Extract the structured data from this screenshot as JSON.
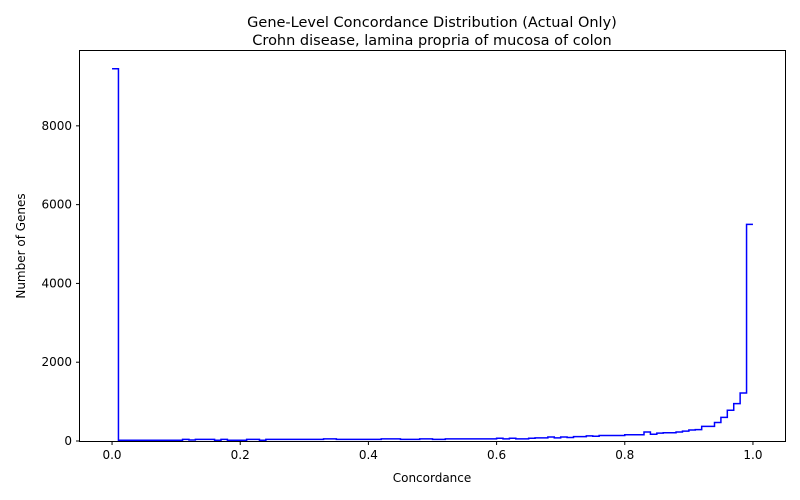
{
  "chart_data": {
    "type": "line",
    "drawstyle": "steps-post",
    "title": "Gene-Level Concordance Distribution (Actual Only)",
    "subtitle": "Crohn disease, lamina propria of mucosa of colon",
    "xlabel": "Concordance",
    "ylabel": "Number of Genes",
    "xlim": [
      -0.05,
      1.05
    ],
    "ylim": [
      0,
      9900
    ],
    "xticks": [
      0.0,
      0.2,
      0.4,
      0.6,
      0.8,
      1.0
    ],
    "xtick_labels": [
      "0.0",
      "0.2",
      "0.4",
      "0.6",
      "0.8",
      "1.0"
    ],
    "yticks": [
      0,
      2000,
      4000,
      6000,
      8000
    ],
    "ytick_labels": [
      "0",
      "2000",
      "4000",
      "6000",
      "8000"
    ],
    "grid": false,
    "color": "#0000ff",
    "series": [
      {
        "x": [
          0.0,
          0.01,
          0.02,
          0.03,
          0.04,
          0.05,
          0.06,
          0.07,
          0.08,
          0.09,
          0.1,
          0.11,
          0.12,
          0.13,
          0.14,
          0.15,
          0.16,
          0.17,
          0.18,
          0.19,
          0.2,
          0.21,
          0.22,
          0.23,
          0.24,
          0.25,
          0.26,
          0.27,
          0.28,
          0.29,
          0.3,
          0.31,
          0.32,
          0.33,
          0.34,
          0.35,
          0.36,
          0.37,
          0.38,
          0.39,
          0.4,
          0.41,
          0.42,
          0.43,
          0.44,
          0.45,
          0.46,
          0.47,
          0.48,
          0.49,
          0.5,
          0.51,
          0.52,
          0.53,
          0.54,
          0.55,
          0.56,
          0.57,
          0.58,
          0.59,
          0.6,
          0.61,
          0.62,
          0.63,
          0.64,
          0.65,
          0.66,
          0.67,
          0.68,
          0.69,
          0.7,
          0.71,
          0.72,
          0.73,
          0.74,
          0.75,
          0.76,
          0.77,
          0.78,
          0.79,
          0.8,
          0.81,
          0.82,
          0.83,
          0.84,
          0.85,
          0.86,
          0.87,
          0.88,
          0.89,
          0.9,
          0.91,
          0.92,
          0.93,
          0.94,
          0.95,
          0.96,
          0.97,
          0.98,
          0.99,
          1.0
        ],
        "y": [
          9450,
          20,
          20,
          20,
          20,
          20,
          20,
          20,
          20,
          20,
          20,
          40,
          25,
          40,
          40,
          40,
          20,
          40,
          20,
          20,
          20,
          40,
          40,
          20,
          40,
          40,
          40,
          40,
          40,
          40,
          40,
          40,
          40,
          55,
          55,
          40,
          40,
          40,
          40,
          40,
          40,
          40,
          55,
          55,
          55,
          40,
          40,
          40,
          55,
          55,
          40,
          40,
          55,
          55,
          55,
          55,
          55,
          55,
          55,
          55,
          70,
          55,
          70,
          55,
          55,
          70,
          80,
          80,
          100,
          80,
          100,
          90,
          110,
          110,
          130,
          120,
          140,
          140,
          140,
          140,
          160,
          160,
          160,
          230,
          170,
          200,
          210,
          210,
          230,
          250,
          280,
          290,
          370,
          370,
          470,
          600,
          780,
          950,
          1220,
          5500,
          5500
        ]
      }
    ]
  }
}
